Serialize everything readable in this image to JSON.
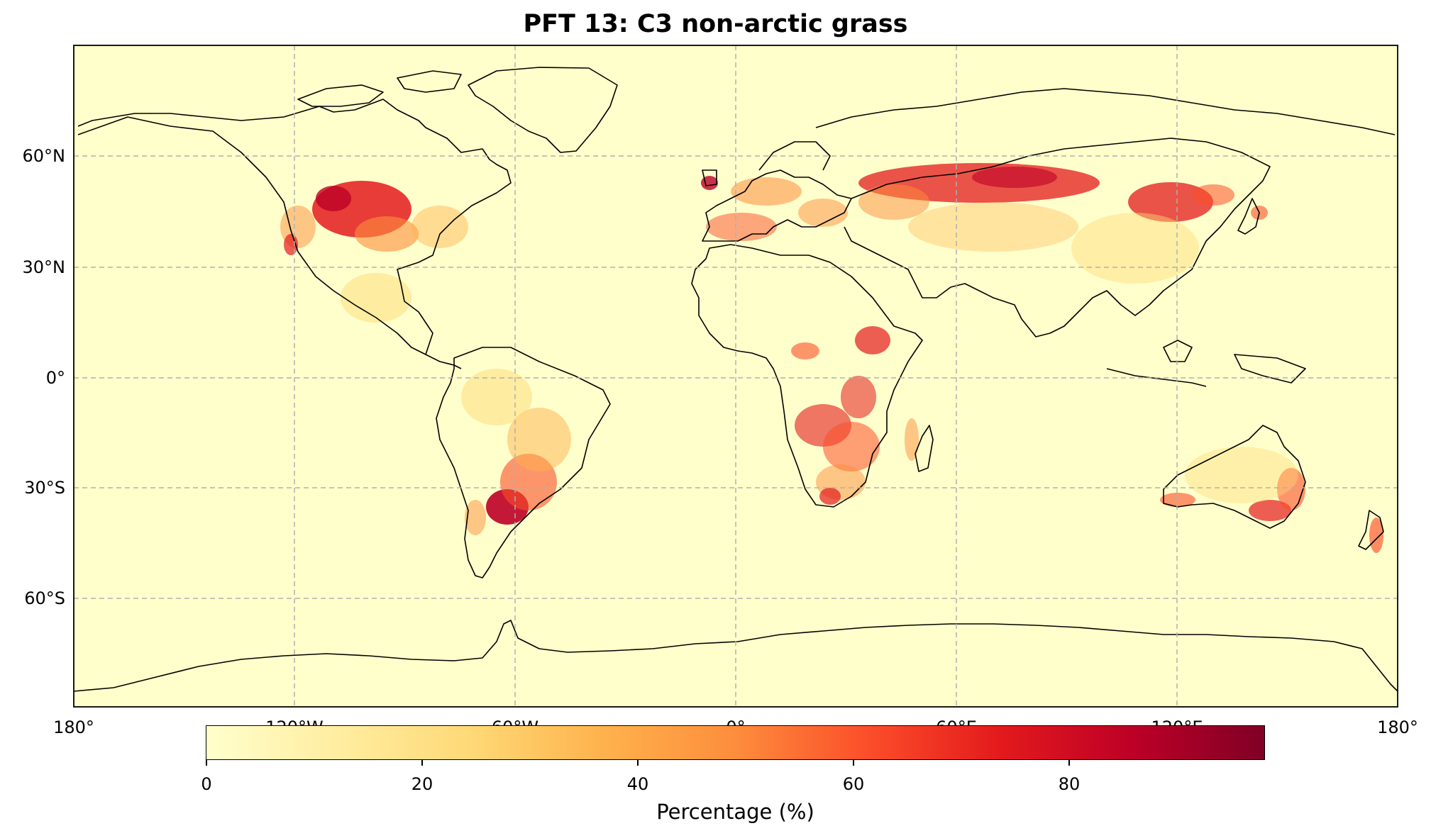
{
  "title": "PFT 13: C3 non-arctic grass",
  "lat_labels": [
    "60°N",
    "30°N",
    "0°",
    "30°S",
    "60°S"
  ],
  "lon_labels": [
    "180°",
    "120°W",
    "60°W",
    "0°",
    "60°E",
    "120°E",
    "180°"
  ],
  "colorbar": {
    "label": "Percentage (%)",
    "ticks": [
      "0",
      "20",
      "40",
      "60",
      "80"
    ],
    "range": [
      0,
      98
    ],
    "colormap": "YlOrRd",
    "colors": [
      "#ffffcc",
      "#ffeda0",
      "#fed976",
      "#feb24c",
      "#fd8d3c",
      "#fc4e2a",
      "#e31a1c",
      "#bd0026",
      "#800026"
    ]
  },
  "map": {
    "background_color": "#ffffcc",
    "projection": "PlateCarree",
    "extent": [
      -180,
      180,
      -90,
      90
    ],
    "gridlines": "dashed"
  }
}
